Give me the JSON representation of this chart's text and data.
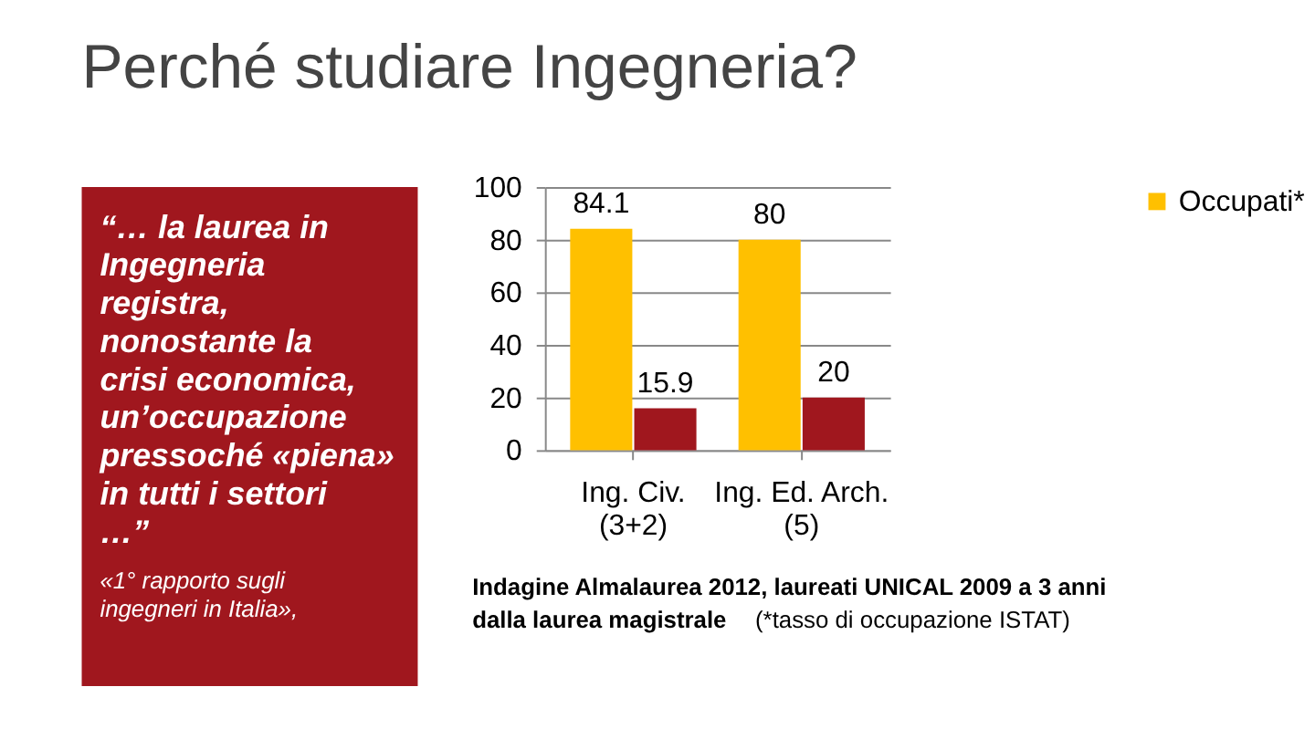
{
  "chart_data": {
    "type": "bar",
    "title": "Perché studiare Ingegneria?",
    "categories": [
      "Ing. Civ. (3+2)",
      "Ing. Ed. Arch. (5)"
    ],
    "series": [
      {
        "name": "Occupati*",
        "color": "#ffc000",
        "values": [
          84.1,
          80
        ]
      },
      {
        "color": "#a0171e",
        "values": [
          15.9,
          20
        ]
      }
    ],
    "ylim": [
      0,
      100
    ],
    "yticks": [
      0,
      20,
      40,
      60,
      80,
      100
    ],
    "grid": "y",
    "legend": "right",
    "data_labels": true,
    "annotations": [
      "“… la laurea in Ingegneria registra, nonostante la crisi economica, un’occupazione pressoché «piena» in tutti i settori …”",
      "«1° rapporto sugli ingegneri in Italia»,",
      "Indagine Almalaurea 2012, laureati UNICAL 2009 a 3 anni dalla laurea magistrale",
      "(*tasso di occupazione ISTAT)"
    ]
  }
}
